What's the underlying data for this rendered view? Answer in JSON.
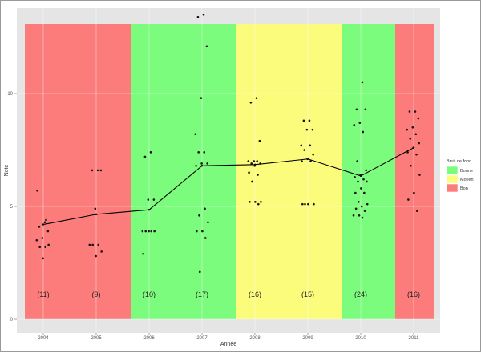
{
  "chart_data": {
    "type": "scatter",
    "title": "",
    "xlabel": "Année",
    "ylabel": "Note",
    "categories": [
      "2004",
      "2005",
      "2006",
      "2007",
      "2008",
      "2009",
      "2010",
      "2011"
    ],
    "ylim": [
      0,
      14
    ],
    "y_ticks": [
      0,
      5,
      10
    ],
    "y_tick_labels": [
      "0",
      "5",
      "10"
    ],
    "counts": [
      "(11)",
      "(9)",
      "(10)",
      "(17)",
      "(16)",
      "(15)",
      "(24)",
      "(16)"
    ],
    "count_label_y": 1.0,
    "mean_line": [
      4.2,
      4.65,
      4.85,
      6.8,
      6.85,
      7.1,
      6.35,
      7.6
    ],
    "band_labels": {
      "green": "Bonne",
      "yellow": "Moyen",
      "red": "Bon"
    },
    "bands": [
      {
        "from": 0,
        "to": 2,
        "level": "red"
      },
      {
        "from": 2,
        "to": 4,
        "level": "green"
      },
      {
        "from": 4,
        "to": 6,
        "level": "yellow"
      },
      {
        "from": 6,
        "to": 7,
        "level": "green"
      },
      {
        "from": 7,
        "to": 8,
        "level": "red"
      }
    ],
    "legend": {
      "title": "Bruit de fond",
      "position": "right",
      "entries": [
        {
          "key": "green",
          "label": "Bonne",
          "color": "#7cfc7c"
        },
        {
          "key": "yellow",
          "label": "Moyen",
          "color": "#fcfc7c"
        },
        {
          "key": "red",
          "label": "Bon",
          "color": "#fc7c7c"
        }
      ]
    },
    "points": [
      {
        "x": 0,
        "y": 4.3
      },
      {
        "x": 0,
        "y": 4.1
      },
      {
        "x": 0,
        "y": 3.9
      },
      {
        "x": 0,
        "y": 3.6
      },
      {
        "x": 0,
        "y": 3.5
      },
      {
        "x": 0,
        "y": 3.2
      },
      {
        "x": 0,
        "y": 3.2
      },
      {
        "x": 0,
        "y": 3.3
      },
      {
        "x": 0,
        "y": 2.7
      },
      {
        "x": 0,
        "y": 5.7
      },
      {
        "x": 0,
        "y": 4.4
      },
      {
        "x": 1,
        "y": 6.6
      },
      {
        "x": 1,
        "y": 6.6
      },
      {
        "x": 1,
        "y": 6.6
      },
      {
        "x": 1,
        "y": 4.9
      },
      {
        "x": 1,
        "y": 3.3
      },
      {
        "x": 1,
        "y": 3.3
      },
      {
        "x": 1,
        "y": 3.3
      },
      {
        "x": 1,
        "y": 3.0
      },
      {
        "x": 1,
        "y": 2.8
      },
      {
        "x": 2,
        "y": 7.4
      },
      {
        "x": 2,
        "y": 7.2
      },
      {
        "x": 2,
        "y": 5.3
      },
      {
        "x": 2,
        "y": 5.3
      },
      {
        "x": 2,
        "y": 3.9
      },
      {
        "x": 2,
        "y": 3.9
      },
      {
        "x": 2,
        "y": 3.9
      },
      {
        "x": 2,
        "y": 3.9
      },
      {
        "x": 2,
        "y": 3.9
      },
      {
        "x": 2,
        "y": 2.9
      },
      {
        "x": 3,
        "y": 13.5
      },
      {
        "x": 3,
        "y": 13.4
      },
      {
        "x": 3,
        "y": 12.1
      },
      {
        "x": 3,
        "y": 9.8
      },
      {
        "x": 3,
        "y": 8.2
      },
      {
        "x": 3,
        "y": 7.4
      },
      {
        "x": 3,
        "y": 7.4
      },
      {
        "x": 3,
        "y": 6.9
      },
      {
        "x": 3,
        "y": 6.9
      },
      {
        "x": 3,
        "y": 6.8
      },
      {
        "x": 3,
        "y": 4.9
      },
      {
        "x": 3,
        "y": 4.6
      },
      {
        "x": 3,
        "y": 4.3
      },
      {
        "x": 3,
        "y": 3.9
      },
      {
        "x": 3,
        "y": 3.9
      },
      {
        "x": 3,
        "y": 3.6
      },
      {
        "x": 3,
        "y": 2.1
      },
      {
        "x": 4,
        "y": 9.8
      },
      {
        "x": 4,
        "y": 9.6
      },
      {
        "x": 4,
        "y": 7.9
      },
      {
        "x": 4,
        "y": 7.0
      },
      {
        "x": 4,
        "y": 7.0
      },
      {
        "x": 4,
        "y": 7.0
      },
      {
        "x": 4,
        "y": 6.9
      },
      {
        "x": 4,
        "y": 6.9
      },
      {
        "x": 4,
        "y": 6.8
      },
      {
        "x": 4,
        "y": 6.5
      },
      {
        "x": 4,
        "y": 6.4
      },
      {
        "x": 4,
        "y": 6.1
      },
      {
        "x": 4,
        "y": 5.2
      },
      {
        "x": 4,
        "y": 5.2
      },
      {
        "x": 4,
        "y": 5.2
      },
      {
        "x": 4,
        "y": 5.1
      },
      {
        "x": 5,
        "y": 8.8
      },
      {
        "x": 5,
        "y": 8.8
      },
      {
        "x": 5,
        "y": 8.4
      },
      {
        "x": 5,
        "y": 8.4
      },
      {
        "x": 5,
        "y": 7.7
      },
      {
        "x": 5,
        "y": 7.7
      },
      {
        "x": 5,
        "y": 7.5
      },
      {
        "x": 5,
        "y": 7.3
      },
      {
        "x": 5,
        "y": 7.1
      },
      {
        "x": 5,
        "y": 7.0
      },
      {
        "x": 5,
        "y": 7.0
      },
      {
        "x": 5,
        "y": 5.1
      },
      {
        "x": 5,
        "y": 5.1
      },
      {
        "x": 5,
        "y": 5.1
      },
      {
        "x": 5,
        "y": 5.1
      },
      {
        "x": 6,
        "y": 10.5
      },
      {
        "x": 6,
        "y": 9.3
      },
      {
        "x": 6,
        "y": 9.3
      },
      {
        "x": 6,
        "y": 8.7
      },
      {
        "x": 6,
        "y": 8.6
      },
      {
        "x": 6,
        "y": 8.3
      },
      {
        "x": 6,
        "y": 7.0
      },
      {
        "x": 6,
        "y": 6.6
      },
      {
        "x": 6,
        "y": 6.4
      },
      {
        "x": 6,
        "y": 6.3
      },
      {
        "x": 6,
        "y": 6.2
      },
      {
        "x": 6,
        "y": 6.1
      },
      {
        "x": 6,
        "y": 6.1
      },
      {
        "x": 6,
        "y": 5.8
      },
      {
        "x": 6,
        "y": 5.6
      },
      {
        "x": 6,
        "y": 5.6
      },
      {
        "x": 6,
        "y": 5.2
      },
      {
        "x": 6,
        "y": 5.1
      },
      {
        "x": 6,
        "y": 5.0
      },
      {
        "x": 6,
        "y": 4.9
      },
      {
        "x": 6,
        "y": 4.8
      },
      {
        "x": 6,
        "y": 4.6
      },
      {
        "x": 6,
        "y": 4.6
      },
      {
        "x": 6,
        "y": 4.5
      },
      {
        "x": 7,
        "y": 9.2
      },
      {
        "x": 7,
        "y": 9.2
      },
      {
        "x": 7,
        "y": 8.9
      },
      {
        "x": 7,
        "y": 8.5
      },
      {
        "x": 7,
        "y": 8.4
      },
      {
        "x": 7,
        "y": 8.2
      },
      {
        "x": 7,
        "y": 8.0
      },
      {
        "x": 7,
        "y": 7.8
      },
      {
        "x": 7,
        "y": 7.6
      },
      {
        "x": 7,
        "y": 7.4
      },
      {
        "x": 7,
        "y": 7.3
      },
      {
        "x": 7,
        "y": 6.8
      },
      {
        "x": 7,
        "y": 6.4
      },
      {
        "x": 7,
        "y": 5.6
      },
      {
        "x": 7,
        "y": 5.3
      },
      {
        "x": 7,
        "y": 4.8
      }
    ],
    "grid": true
  }
}
